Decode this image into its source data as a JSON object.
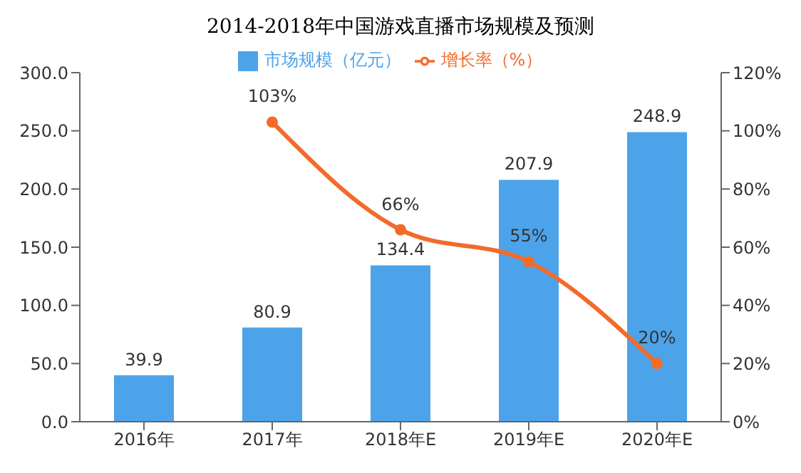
{
  "chart_data": {
    "type": "bar",
    "title": "2014-2018年中国游戏直播市场规模及预测",
    "categories": [
      "2016年",
      "2017年",
      "2018年E",
      "2019年E",
      "2020年E"
    ],
    "series": [
      {
        "name": "市场规模（亿元）",
        "color": "#4da3ea",
        "values": [
          39.9,
          80.9,
          134.4,
          207.9,
          248.9
        ],
        "value_labels": [
          "39.9",
          "80.9",
          "134.4",
          "207.9",
          "248.9"
        ]
      },
      {
        "name": "增长率（%）",
        "type": "line",
        "axis": "y2",
        "color": "#f26b2a",
        "values": [
          null,
          103,
          66,
          55,
          20
        ],
        "value_labels": [
          null,
          "103%",
          "66%",
          "55%",
          "20%"
        ]
      }
    ],
    "ylim": [
      0,
      300
    ],
    "yticks": [
      {
        "value": 0,
        "label": "0.0"
      },
      {
        "value": 50,
        "label": "50.0"
      },
      {
        "value": 100,
        "label": "100.0"
      },
      {
        "value": 150,
        "label": "150.0"
      },
      {
        "value": 200,
        "label": "200.0"
      },
      {
        "value": 250,
        "label": "250.0"
      },
      {
        "value": 300,
        "label": "300.0"
      }
    ],
    "y2lim": [
      0,
      120
    ],
    "y2ticks": [
      {
        "value": 0,
        "label": "0%"
      },
      {
        "value": 20,
        "label": "20%"
      },
      {
        "value": 40,
        "label": "40%"
      },
      {
        "value": 60,
        "label": "60%"
      },
      {
        "value": 80,
        "label": "80%"
      },
      {
        "value": 100,
        "label": "100%"
      },
      {
        "value": 120,
        "label": "120%"
      }
    ],
    "legend": "top",
    "grid": false,
    "marker": "circle"
  }
}
